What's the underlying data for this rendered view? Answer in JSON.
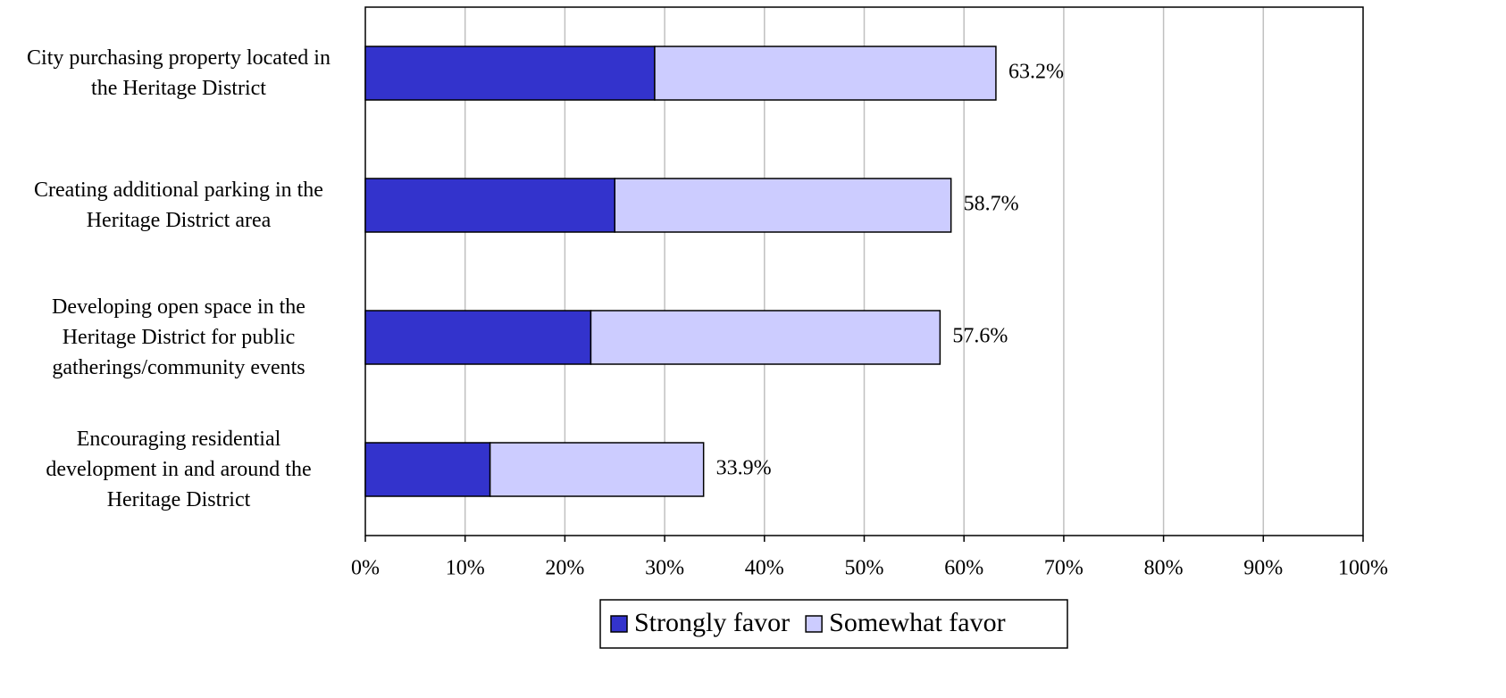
{
  "chart_data": {
    "type": "stacked-barh",
    "categories": [
      "City purchasing property located in\nthe Heritage District",
      "Creating additional parking in the\nHeritage District area",
      "Developing open space in the\nHeritage District for public\ngatherings/community events",
      "Encouraging residential\ndevelopment in and around the\nHeritage District"
    ],
    "series": [
      {
        "name": "Strongly favor",
        "color": "#3333cc",
        "values": [
          29.0,
          25.0,
          22.6,
          12.5
        ]
      },
      {
        "name": "Somewhat favor",
        "color": "#ccccff",
        "values": [
          34.2,
          33.7,
          35.0,
          21.4
        ]
      }
    ],
    "totals": [
      63.2,
      58.7,
      57.6,
      33.9
    ],
    "total_labels": [
      "63.2%",
      "58.7%",
      "57.6%",
      "33.9%"
    ],
    "xlim": [
      0,
      100
    ],
    "xticks": [
      {
        "value": 0,
        "label": "0%"
      },
      {
        "value": 10,
        "label": "10%"
      },
      {
        "value": 20,
        "label": "20%"
      },
      {
        "value": 30,
        "label": "30%"
      },
      {
        "value": 40,
        "label": "40%"
      },
      {
        "value": 50,
        "label": "50%"
      },
      {
        "value": 60,
        "label": "60%"
      },
      {
        "value": 70,
        "label": "70%"
      },
      {
        "value": 80,
        "label": "80%"
      },
      {
        "value": 90,
        "label": "90%"
      },
      {
        "value": 100,
        "label": "100%"
      }
    ],
    "grid": true
  }
}
